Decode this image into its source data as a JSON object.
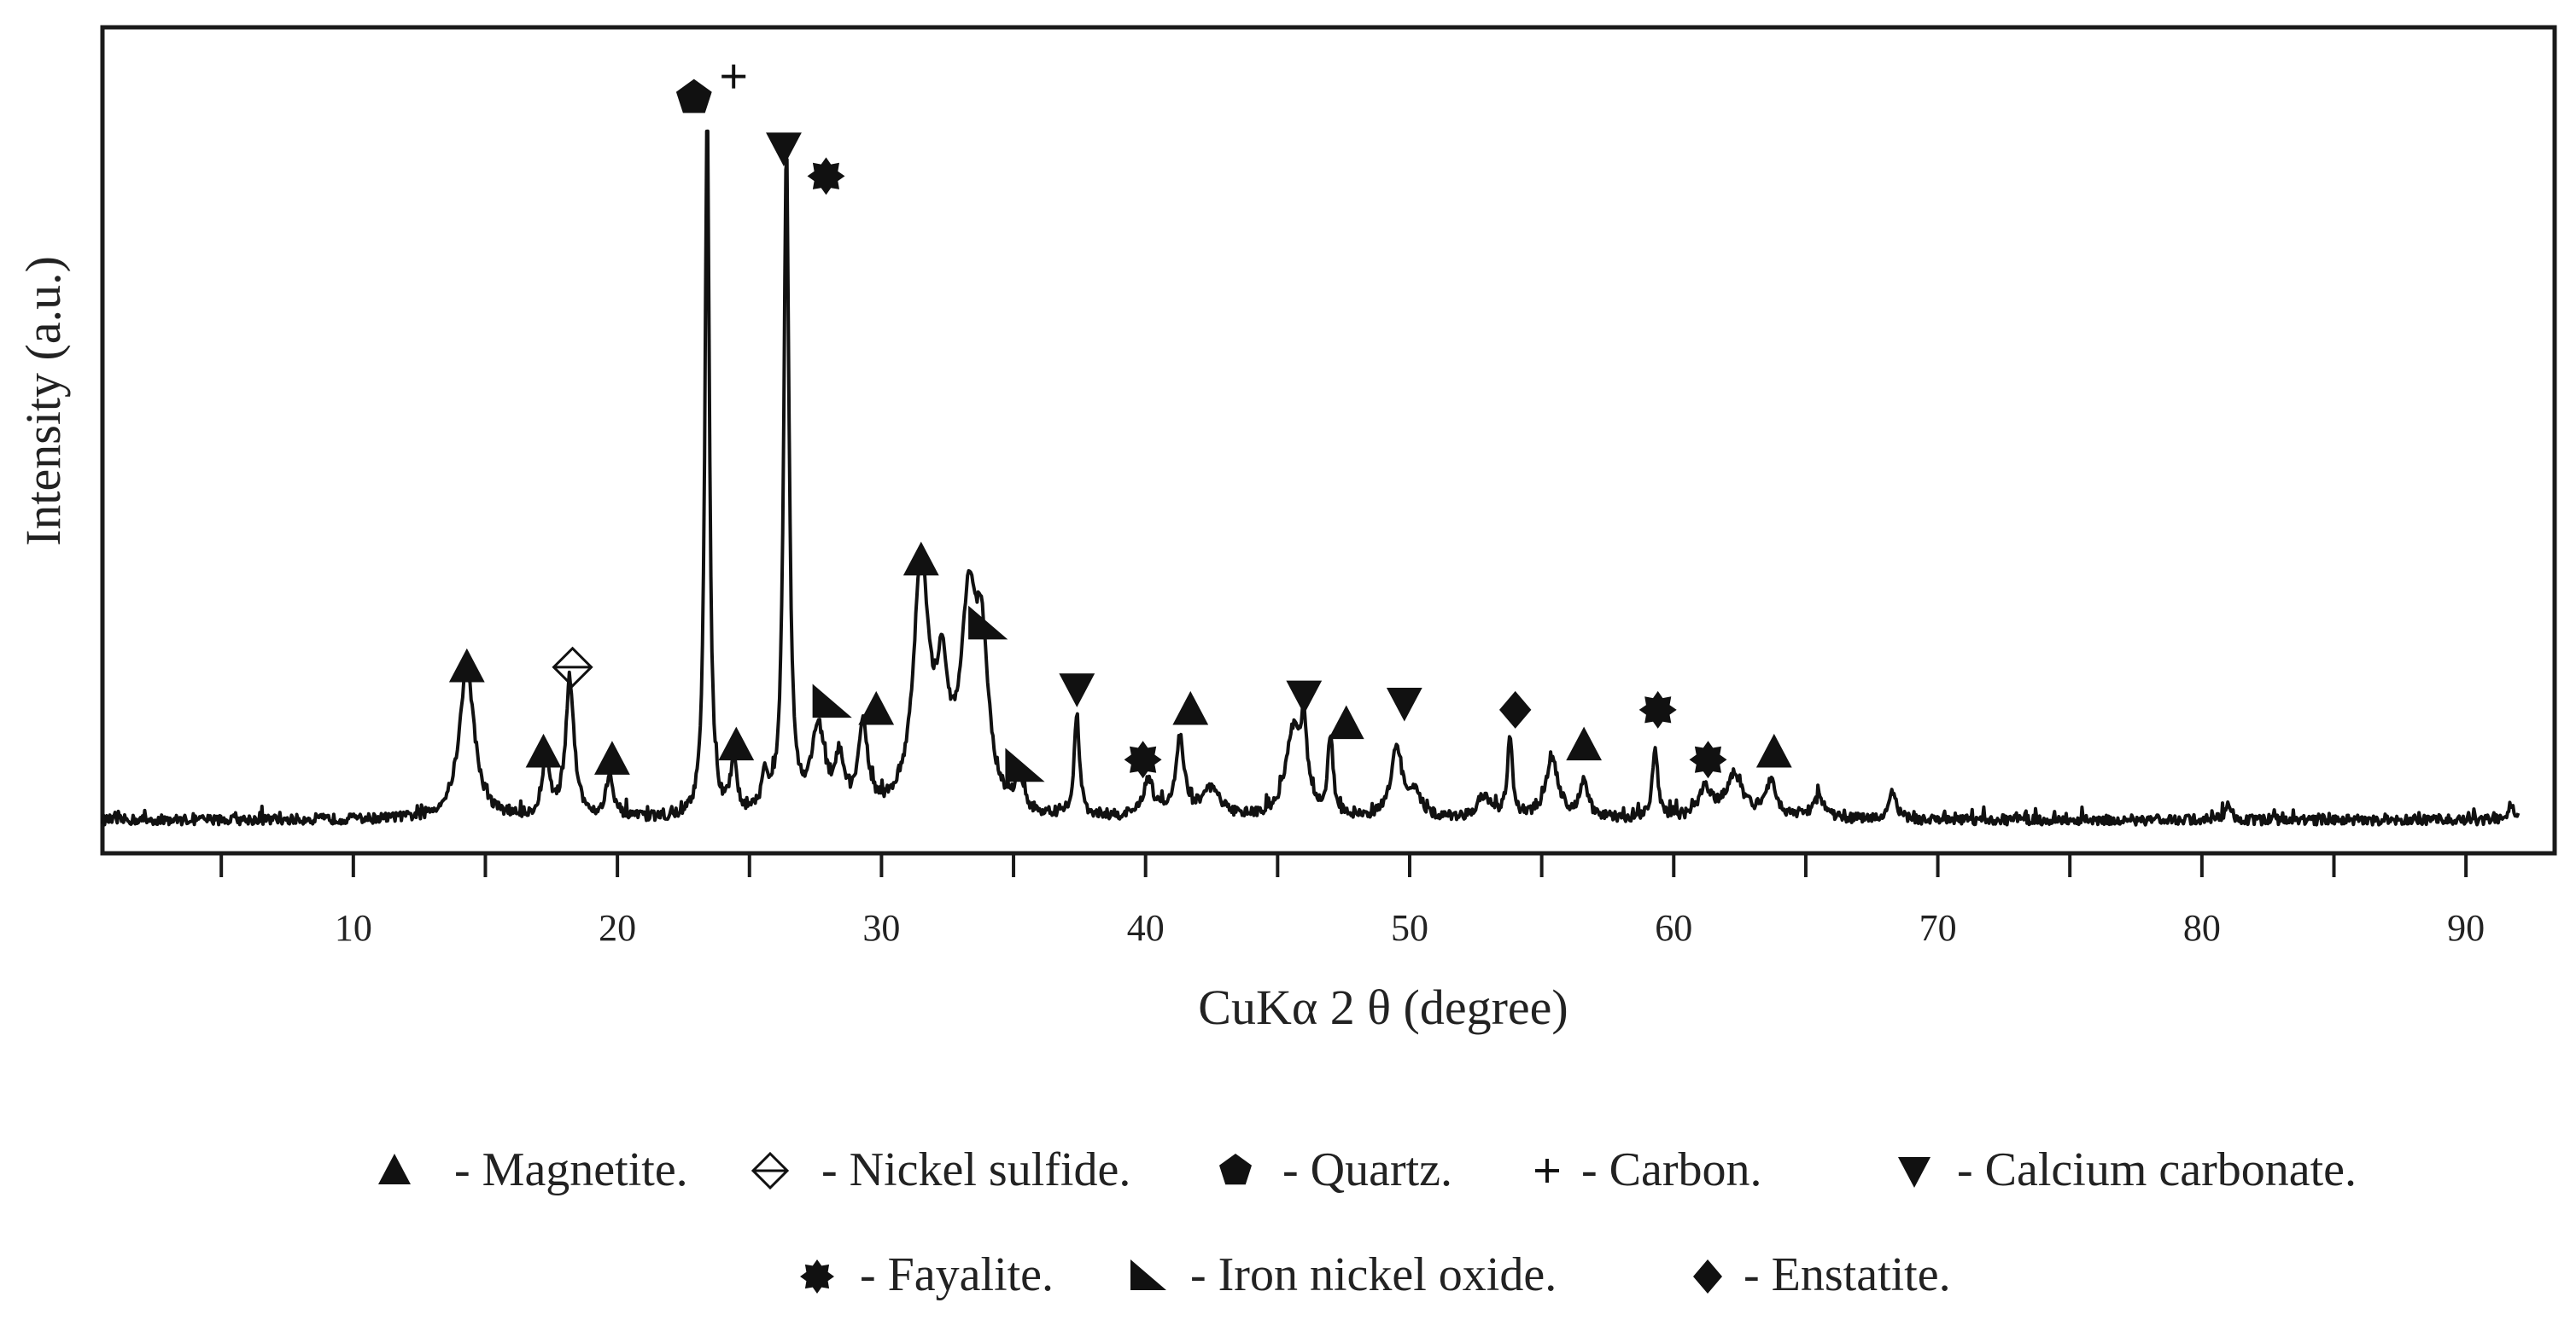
{
  "chart_data": {
    "type": "line",
    "title": "",
    "xlabel": "CuKα 2 θ (degree)",
    "ylabel": "Intensity (a.u.)",
    "xlim": [
      0.5,
      92
    ],
    "ylim": [
      0,
      100
    ],
    "x_ticks": [
      10,
      20,
      30,
      40,
      50,
      60,
      70,
      80,
      90
    ],
    "y_ticks_labeled": false,
    "grid": false,
    "legend_position": "bottom",
    "baseline": 2.5,
    "series": [
      {
        "peaks": [
          {
            "x": 14.3,
            "y": 21,
            "w": 0.35
          },
          {
            "x": 17.3,
            "y": 9,
            "w": 0.15
          },
          {
            "x": 18.2,
            "y": 19,
            "w": 0.2
          },
          {
            "x": 19.7,
            "y": 6,
            "w": 0.15
          },
          {
            "x": 23.4,
            "y": 100,
            "w": 0.1
          },
          {
            "x": 24.4,
            "y": 7,
            "w": 0.15
          },
          {
            "x": 25.6,
            "y": 5,
            "w": 0.15
          },
          {
            "x": 26.4,
            "y": 93,
            "w": 0.12
          },
          {
            "x": 27.6,
            "y": 12,
            "w": 0.3
          },
          {
            "x": 28.4,
            "y": 7,
            "w": 0.2
          },
          {
            "x": 29.3,
            "y": 12,
            "w": 0.22
          },
          {
            "x": 31.5,
            "y": 34,
            "w": 0.35
          },
          {
            "x": 32.3,
            "y": 16,
            "w": 0.3
          },
          {
            "x": 33.3,
            "y": 27,
            "w": 0.35
          },
          {
            "x": 33.8,
            "y": 20,
            "w": 0.3
          },
          {
            "x": 35.2,
            "y": 5,
            "w": 0.15
          },
          {
            "x": 37.4,
            "y": 14,
            "w": 0.12
          },
          {
            "x": 40.1,
            "y": 5,
            "w": 0.25
          },
          {
            "x": 41.3,
            "y": 11,
            "w": 0.2
          },
          {
            "x": 42.5,
            "y": 4,
            "w": 0.4
          },
          {
            "x": 45.6,
            "y": 12,
            "w": 0.35
          },
          {
            "x": 46.0,
            "y": 10,
            "w": 0.15
          },
          {
            "x": 47.0,
            "y": 11,
            "w": 0.12
          },
          {
            "x": 49.5,
            "y": 10,
            "w": 0.25
          },
          {
            "x": 50.2,
            "y": 3,
            "w": 0.3
          },
          {
            "x": 52.8,
            "y": 3,
            "w": 0.3
          },
          {
            "x": 53.8,
            "y": 11,
            "w": 0.12
          },
          {
            "x": 55.4,
            "y": 8,
            "w": 0.3
          },
          {
            "x": 56.6,
            "y": 5,
            "w": 0.2
          },
          {
            "x": 59.3,
            "y": 10,
            "w": 0.12
          },
          {
            "x": 61.2,
            "y": 4,
            "w": 0.3
          },
          {
            "x": 62.3,
            "y": 6,
            "w": 0.4
          },
          {
            "x": 63.7,
            "y": 5,
            "w": 0.25
          },
          {
            "x": 65.5,
            "y": 3,
            "w": 0.3
          },
          {
            "x": 68.3,
            "y": 4,
            "w": 0.15
          },
          {
            "x": 81.0,
            "y": 2,
            "w": 0.15
          },
          {
            "x": 91.7,
            "y": 2,
            "w": 0.15
          }
        ]
      }
    ],
    "peak_markers": [
      {
        "x": 14.3,
        "y": 24,
        "symbol": "magnetite"
      },
      {
        "x": 17.2,
        "y": 12,
        "symbol": "magnetite"
      },
      {
        "x": 18.3,
        "y": 24,
        "symbol": "nickel-sulfide"
      },
      {
        "x": 19.8,
        "y": 11,
        "symbol": "magnetite"
      },
      {
        "x": 22.9,
        "y": 104,
        "symbol": "quartz"
      },
      {
        "x": 24.4,
        "y": 107,
        "symbol": "carbon"
      },
      {
        "x": 26.3,
        "y": 97,
        "symbol": "calcium-carbonate"
      },
      {
        "x": 27.9,
        "y": 93,
        "symbol": "fayalite"
      },
      {
        "x": 24.5,
        "y": 13,
        "symbol": "magnetite"
      },
      {
        "x": 28.1,
        "y": 19,
        "symbol": "iron-nickel-oxide"
      },
      {
        "x": 29.8,
        "y": 18,
        "symbol": "magnetite"
      },
      {
        "x": 31.5,
        "y": 39,
        "symbol": "magnetite"
      },
      {
        "x": 34.0,
        "y": 30,
        "symbol": "iron-nickel-oxide"
      },
      {
        "x": 35.4,
        "y": 10,
        "symbol": "iron-nickel-oxide"
      },
      {
        "x": 37.4,
        "y": 21,
        "symbol": "calcium-carbonate"
      },
      {
        "x": 39.9,
        "y": 11,
        "symbol": "fayalite"
      },
      {
        "x": 41.7,
        "y": 18,
        "symbol": "magnetite"
      },
      {
        "x": 46.0,
        "y": 20,
        "symbol": "calcium-carbonate"
      },
      {
        "x": 47.6,
        "y": 16,
        "symbol": "magnetite"
      },
      {
        "x": 49.8,
        "y": 19,
        "symbol": "calcium-carbonate"
      },
      {
        "x": 54.0,
        "y": 18,
        "symbol": "enstatite"
      },
      {
        "x": 56.6,
        "y": 13,
        "symbol": "magnetite"
      },
      {
        "x": 59.4,
        "y": 18,
        "symbol": "fayalite"
      },
      {
        "x": 61.3,
        "y": 11,
        "symbol": "fayalite"
      },
      {
        "x": 63.8,
        "y": 12,
        "symbol": "magnetite"
      }
    ],
    "legend": [
      {
        "symbol": "magnetite",
        "label": "- Magnetite."
      },
      {
        "symbol": "nickel-sulfide",
        "label": "- Nickel sulfide."
      },
      {
        "symbol": "quartz",
        "label": "- Quartz."
      },
      {
        "symbol": "carbon",
        "label": "- Carbon."
      },
      {
        "symbol": "calcium-carbonate",
        "label": "- Calcium carbonate."
      },
      {
        "symbol": "fayalite",
        "label": "- Fayalite."
      },
      {
        "symbol": "iron-nickel-oxide",
        "label": "- Iron nickel oxide."
      },
      {
        "symbol": "enstatite",
        "label": "- Enstatite."
      }
    ]
  }
}
